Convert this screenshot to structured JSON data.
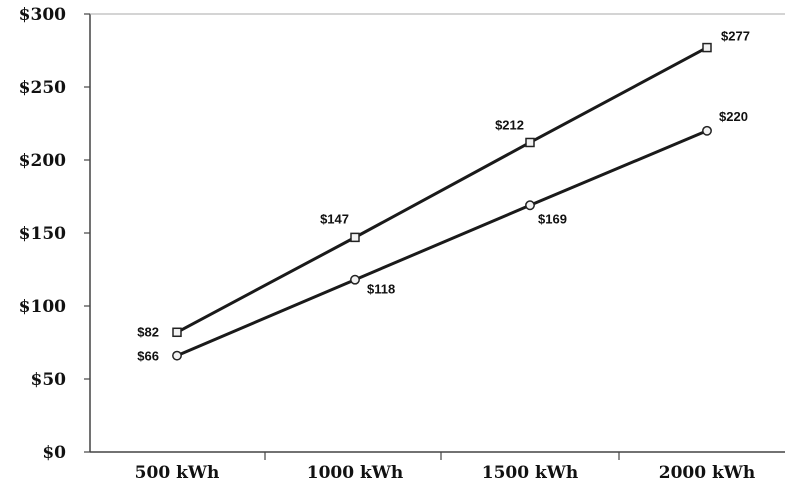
{
  "chart_data": {
    "type": "line",
    "categories": [
      "500 kWh",
      "1000 kWh",
      "1500 kWh",
      "2000 kWh"
    ],
    "series": [
      {
        "values": [
          82,
          147,
          212,
          277
        ],
        "labels": [
          "$82",
          "$147",
          "$212",
          "$277"
        ],
        "marker": "square",
        "color": "#1a1a1a"
      },
      {
        "values": [
          66,
          118,
          169,
          220
        ],
        "labels": [
          "$66",
          "$118",
          "$169",
          "$220"
        ],
        "marker": "circle",
        "color": "#1a1a1a"
      }
    ],
    "yticks": [
      "$0",
      "$50",
      "$100",
      "$150",
      "$200",
      "$250",
      "$300"
    ],
    "ylim": [
      0,
      300
    ],
    "grid": false,
    "title": "",
    "xlabel": "",
    "ylabel": ""
  }
}
